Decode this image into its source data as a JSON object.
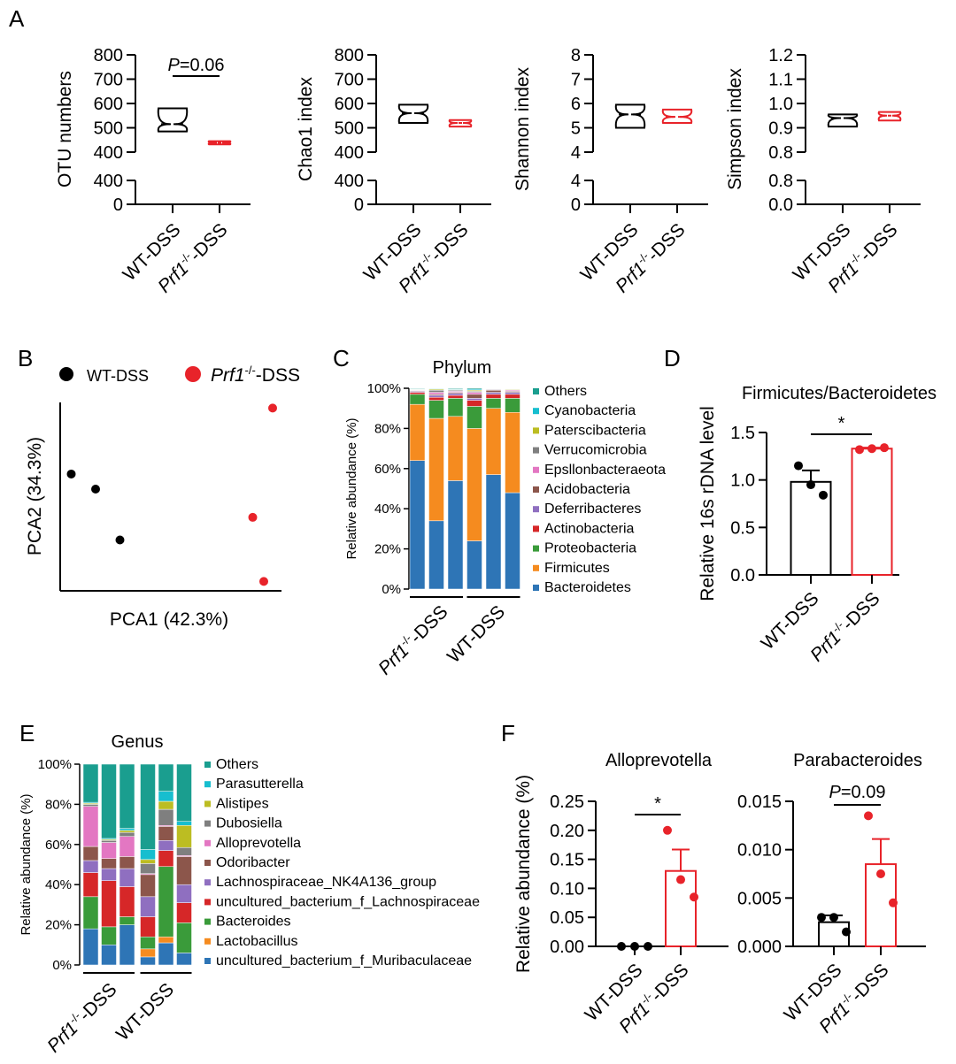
{
  "colors": {
    "wt": "#000000",
    "prf1": "#e8232a",
    "phylum_palette": [
      "#2e75b6",
      "#f58b1f",
      "#3a9b3a",
      "#d62728",
      "#8f6fc0",
      "#8c564b",
      "#e377c2",
      "#7f7f7f",
      "#bcbd22",
      "#17becf",
      "#1a9e8f"
    ],
    "genus_palette": [
      "#2e75b6",
      "#f58b1f",
      "#3a9b3a",
      "#d62728",
      "#8f6fc0",
      "#8c564b",
      "#e377c2",
      "#7f7f7f",
      "#bcbd22",
      "#17becf",
      "#1a9e8f"
    ]
  },
  "panel_labels": {
    "A": "A",
    "B": "B",
    "C": "C",
    "D": "D",
    "E": "E",
    "F": "F"
  },
  "groups": {
    "wt": "WT-DSS",
    "prf1_italic": "Prf1",
    "prf1_sup": "-/-",
    "prf1_rest": "-DSS"
  },
  "chart_data": [
    {
      "id": "A1",
      "type": "violin",
      "ylabel": "OTU numbers",
      "upper_ticks": [
        "400",
        "500",
        "600",
        "700",
        "800"
      ],
      "lower_ticks": [
        "0",
        "400"
      ],
      "annotation": {
        "italic": "P",
        "rest": "=0.06"
      },
      "series": [
        {
          "name": "WT-DSS",
          "min": 485,
          "max": 580,
          "neck": 515
        },
        {
          "name": "Prf1-/--DSS",
          "min": 432,
          "max": 445,
          "neck": 438
        }
      ]
    },
    {
      "id": "A2",
      "type": "violin",
      "ylabel": "Chao1 index",
      "upper_ticks": [
        "400",
        "500",
        "600",
        "700",
        "800"
      ],
      "lower_ticks": [
        "0",
        "400"
      ],
      "series": [
        {
          "name": "WT-DSS",
          "min": 520,
          "max": 595,
          "neck": 560
        },
        {
          "name": "Prf1-/--DSS",
          "min": 505,
          "max": 532,
          "neck": 520
        }
      ]
    },
    {
      "id": "A3",
      "type": "violin",
      "ylabel": "Shannon index",
      "upper_ticks": [
        "4",
        "5",
        "6",
        "7",
        "8"
      ],
      "lower_ticks": [
        "0",
        "4"
      ],
      "series": [
        {
          "name": "WT-DSS",
          "min": 5.0,
          "max": 5.95,
          "neck": 5.55
        },
        {
          "name": "Prf1-/--DSS",
          "min": 5.2,
          "max": 5.75,
          "neck": 5.45
        }
      ]
    },
    {
      "id": "A4",
      "type": "violin",
      "ylabel": "Simpson index",
      "upper_ticks": [
        "0.8",
        "0.9",
        "1.0",
        "1.1",
        "1.2"
      ],
      "lower_ticks": [
        "0.0",
        "0.8"
      ],
      "series": [
        {
          "name": "WT-DSS",
          "min": 0.905,
          "max": 0.955,
          "neck": 0.94
        },
        {
          "name": "Prf1-/--DSS",
          "min": 0.93,
          "max": 0.965,
          "neck": 0.95
        }
      ]
    },
    {
      "id": "B",
      "type": "scatter",
      "xlabel": "PCA1 (42.3%)",
      "ylabel": "PCA2 (34.3%)",
      "xlim": [
        0,
        1
      ],
      "ylim": [
        0,
        1
      ],
      "series": [
        {
          "name": "WT-DSS",
          "x": [
            0.05,
            0.16,
            0.27
          ],
          "y": [
            0.62,
            0.54,
            0.27
          ]
        },
        {
          "name": "Prf1-/--DSS",
          "x": [
            0.96,
            0.87,
            0.92
          ],
          "y": [
            0.97,
            0.39,
            0.05
          ]
        }
      ]
    },
    {
      "id": "C",
      "type": "bar",
      "title": "Phylum",
      "ylabel": "Relative abundance (%)",
      "yticks": [
        "0%",
        "20%",
        "40%",
        "60%",
        "80%",
        "100%"
      ],
      "legend": [
        "Others",
        "Cyanobacteria",
        "Paterscibacteria",
        "Verrucomicrobia",
        "Epsllonbacteraeota",
        "Acidobacteria",
        "Deferribacteres",
        "Actinobacteria",
        "Proteobacteria",
        "Firmicutes",
        "Bacteroidetes"
      ],
      "group_labels": [
        "Prf1-/--DSS",
        "WT-DSS"
      ],
      "samples": [
        {
          "group": "Prf1-/--DSS",
          "values": {
            "Bacteroidetes": 64,
            "Firmicutes": 28,
            "Proteobacteria": 5,
            "Actinobacteria": 1,
            "Deferribacteres": 0.5,
            "Acidobacteria": 0.3,
            "Epsllonbacteraeota": 0.3,
            "Verrucomicrobia": 0.2,
            "Paterscibacteria": 0.2,
            "Cyanobacteria": 0.2,
            "Others": 0.3
          }
        },
        {
          "group": "Prf1-/--DSS",
          "values": {
            "Bacteroidetes": 34,
            "Firmicutes": 51,
            "Proteobacteria": 9,
            "Actinobacteria": 1.5,
            "Deferribacteres": 1,
            "Acidobacteria": 0.5,
            "Epsllonbacteraeota": 1,
            "Verrucomicrobia": 1,
            "Paterscibacteria": 0.5,
            "Cyanobacteria": 0.3,
            "Others": 0.2
          }
        },
        {
          "group": "Prf1-/--DSS",
          "values": {
            "Bacteroidetes": 54,
            "Firmicutes": 32,
            "Proteobacteria": 9,
            "Actinobacteria": 1.5,
            "Deferribacteres": 1,
            "Acidobacteria": 0.5,
            "Epsllonbacteraeota": 0.5,
            "Verrucomicrobia": 0.5,
            "Paterscibacteria": 0.3,
            "Cyanobacteria": 0.3,
            "Others": 0.4
          }
        },
        {
          "group": "WT-DSS",
          "values": {
            "Bacteroidetes": 24,
            "Firmicutes": 56,
            "Proteobacteria": 11,
            "Actinobacteria": 3,
            "Deferribacteres": 1,
            "Acidobacteria": 2,
            "Epsllonbacteraeota": 1,
            "Verrucomicrobia": 0.5,
            "Paterscibacteria": 0.5,
            "Cyanobacteria": 0.5,
            "Others": 0.5
          }
        },
        {
          "group": "WT-DSS",
          "values": {
            "Bacteroidetes": 57,
            "Firmicutes": 33,
            "Proteobacteria": 5,
            "Actinobacteria": 2,
            "Deferribacteres": 1,
            "Acidobacteria": 1,
            "Epsllonbacteraeota": 0.3,
            "Verrucomicrobia": 0.3,
            "Paterscibacteria": 0.2,
            "Cyanobacteria": 0.1,
            "Others": 0.1
          }
        },
        {
          "group": "WT-DSS",
          "values": {
            "Bacteroidetes": 48,
            "Firmicutes": 40,
            "Proteobacteria": 7,
            "Actinobacteria": 2,
            "Deferribacteres": 1,
            "Acidobacteria": 0.5,
            "Epsllonbacteraeota": 0.5,
            "Verrucomicrobia": 0.3,
            "Paterscibacteria": 0.3,
            "Cyanobacteria": 0.2,
            "Others": 0.2
          }
        }
      ]
    },
    {
      "id": "D",
      "type": "bar",
      "title": "Firmicutes/Bacteroidetes",
      "ylabel": "Relative 16s rDNA level",
      "yticks": [
        "0.0",
        "0.5",
        "1.0",
        "1.5"
      ],
      "ylim": [
        0,
        1.5
      ],
      "significance": "*",
      "series": [
        {
          "name": "WT-DSS",
          "mean": 0.98,
          "sem": 0.12,
          "points": [
            1.15,
            0.95,
            0.84
          ]
        },
        {
          "name": "Prf1-/--DSS",
          "mean": 1.33,
          "sem": 0.01,
          "points": [
            1.32,
            1.33,
            1.34
          ]
        }
      ]
    },
    {
      "id": "E",
      "type": "bar",
      "title": "Genus",
      "ylabel": "Relative abundance (%)",
      "yticks": [
        "0%",
        "20%",
        "40%",
        "60%",
        "80%",
        "100%"
      ],
      "legend": [
        "Others",
        "Parasutterella",
        "Alistipes",
        "Dubosiella",
        "Alloprevotella",
        "Odoribacter",
        "Lachnospiraceae_NK4A136_group",
        "uncultured_bacterium_f_Lachnospiraceae",
        "Bacteroides",
        "Lactobacillus",
        "uncultured_bacterium_f_Muribaculaceae"
      ],
      "group_labels": [
        "Prf1-/--DSS",
        "WT-DSS"
      ],
      "samples": [
        {
          "group": "Prf1-/--DSS",
          "values": {
            "uncultured_bacterium_f_Muribaculaceae": 18,
            "Lactobacillus": 0,
            "Bacteroides": 16,
            "uncultured_bacterium_f_Lachnospiraceae": 12,
            "Lachnospiraceae_NK4A136_group": 6,
            "Odoribacter": 7,
            "Alloprevotella": 20,
            "Dubosiella": 1,
            "Alistipes": 0.5,
            "Parasutterella": 0.5,
            "Others": 19
          }
        },
        {
          "group": "Prf1-/--DSS",
          "values": {
            "uncultured_bacterium_f_Muribaculaceae": 10,
            "Lactobacillus": 0,
            "Bacteroides": 9,
            "uncultured_bacterium_f_Lachnospiraceae": 23,
            "Lachnospiraceae_NK4A136_group": 6,
            "Odoribacter": 5,
            "Alloprevotella": 8,
            "Dubosiella": 1,
            "Alistipes": 0.5,
            "Parasutterella": 0.5,
            "Others": 37
          }
        },
        {
          "group": "Prf1-/--DSS",
          "values": {
            "uncultured_bacterium_f_Muribaculaceae": 20,
            "Lactobacillus": 0,
            "Bacteroides": 4,
            "uncultured_bacterium_f_Lachnospiraceae": 15,
            "Lachnospiraceae_NK4A136_group": 9,
            "Odoribacter": 6,
            "Alloprevotella": 10,
            "Dubosiella": 2,
            "Alistipes": 1,
            "Parasutterella": 1,
            "Others": 32
          }
        },
        {
          "group": "WT-DSS",
          "values": {
            "uncultured_bacterium_f_Muribaculaceae": 4,
            "Lactobacillus": 4,
            "Bacteroides": 6,
            "uncultured_bacterium_f_Lachnospiraceae": 10,
            "Lachnospiraceae_NK4A136_group": 10,
            "Odoribacter": 11,
            "Alloprevotella": 0.5,
            "Dubosiella": 5,
            "Alistipes": 2,
            "Parasutterella": 5,
            "Others": 42.5
          }
        },
        {
          "group": "WT-DSS",
          "values": {
            "uncultured_bacterium_f_Muribaculaceae": 11,
            "Lactobacillus": 3,
            "Bacteroides": 35,
            "uncultured_bacterium_f_Lachnospiraceae": 8,
            "Lachnospiraceae_NK4A136_group": 5,
            "Odoribacter": 7,
            "Alloprevotella": 0.5,
            "Dubosiella": 8,
            "Alistipes": 4,
            "Parasutterella": 5,
            "Others": 13.5
          }
        },
        {
          "group": "WT-DSS",
          "values": {
            "uncultured_bacterium_f_Muribaculaceae": 6,
            "Lactobacillus": 0,
            "Bacteroides": 15,
            "uncultured_bacterium_f_Lachnospiraceae": 10,
            "Lachnospiraceae_NK4A136_group": 9,
            "Odoribacter": 14,
            "Alloprevotella": 0.5,
            "Dubosiella": 4,
            "Alistipes": 11,
            "Parasutterella": 2,
            "Others": 28.5
          }
        }
      ]
    },
    {
      "id": "F1",
      "type": "bar",
      "title": "Alloprevotella",
      "ylabel": "Relative abundance (%)",
      "yticks": [
        "0.00",
        "0.05",
        "0.10",
        "0.15",
        "0.20",
        "0.25"
      ],
      "ylim": [
        0,
        0.25
      ],
      "significance": "*",
      "series": [
        {
          "name": "WT-DSS",
          "mean": 0.0,
          "sem": 0.0,
          "points": [
            0.0,
            0.0,
            0.0
          ]
        },
        {
          "name": "Prf1-/--DSS",
          "mean": 0.13,
          "sem": 0.037,
          "points": [
            0.2,
            0.115,
            0.085
          ]
        }
      ]
    },
    {
      "id": "F2",
      "type": "bar",
      "title": "Parabacteroides",
      "yticks": [
        "0.000",
        "0.005",
        "0.010",
        "0.015"
      ],
      "ylim": [
        0,
        0.015
      ],
      "annotation": {
        "italic": "P",
        "rest": "=0.09"
      },
      "series": [
        {
          "name": "WT-DSS",
          "mean": 0.0025,
          "sem": 0.0007,
          "points": [
            0.003,
            0.003,
            0.0015
          ]
        },
        {
          "name": "Prf1-/--DSS",
          "mean": 0.0085,
          "sem": 0.0026,
          "points": [
            0.0135,
            0.0075,
            0.0045
          ]
        }
      ]
    }
  ]
}
